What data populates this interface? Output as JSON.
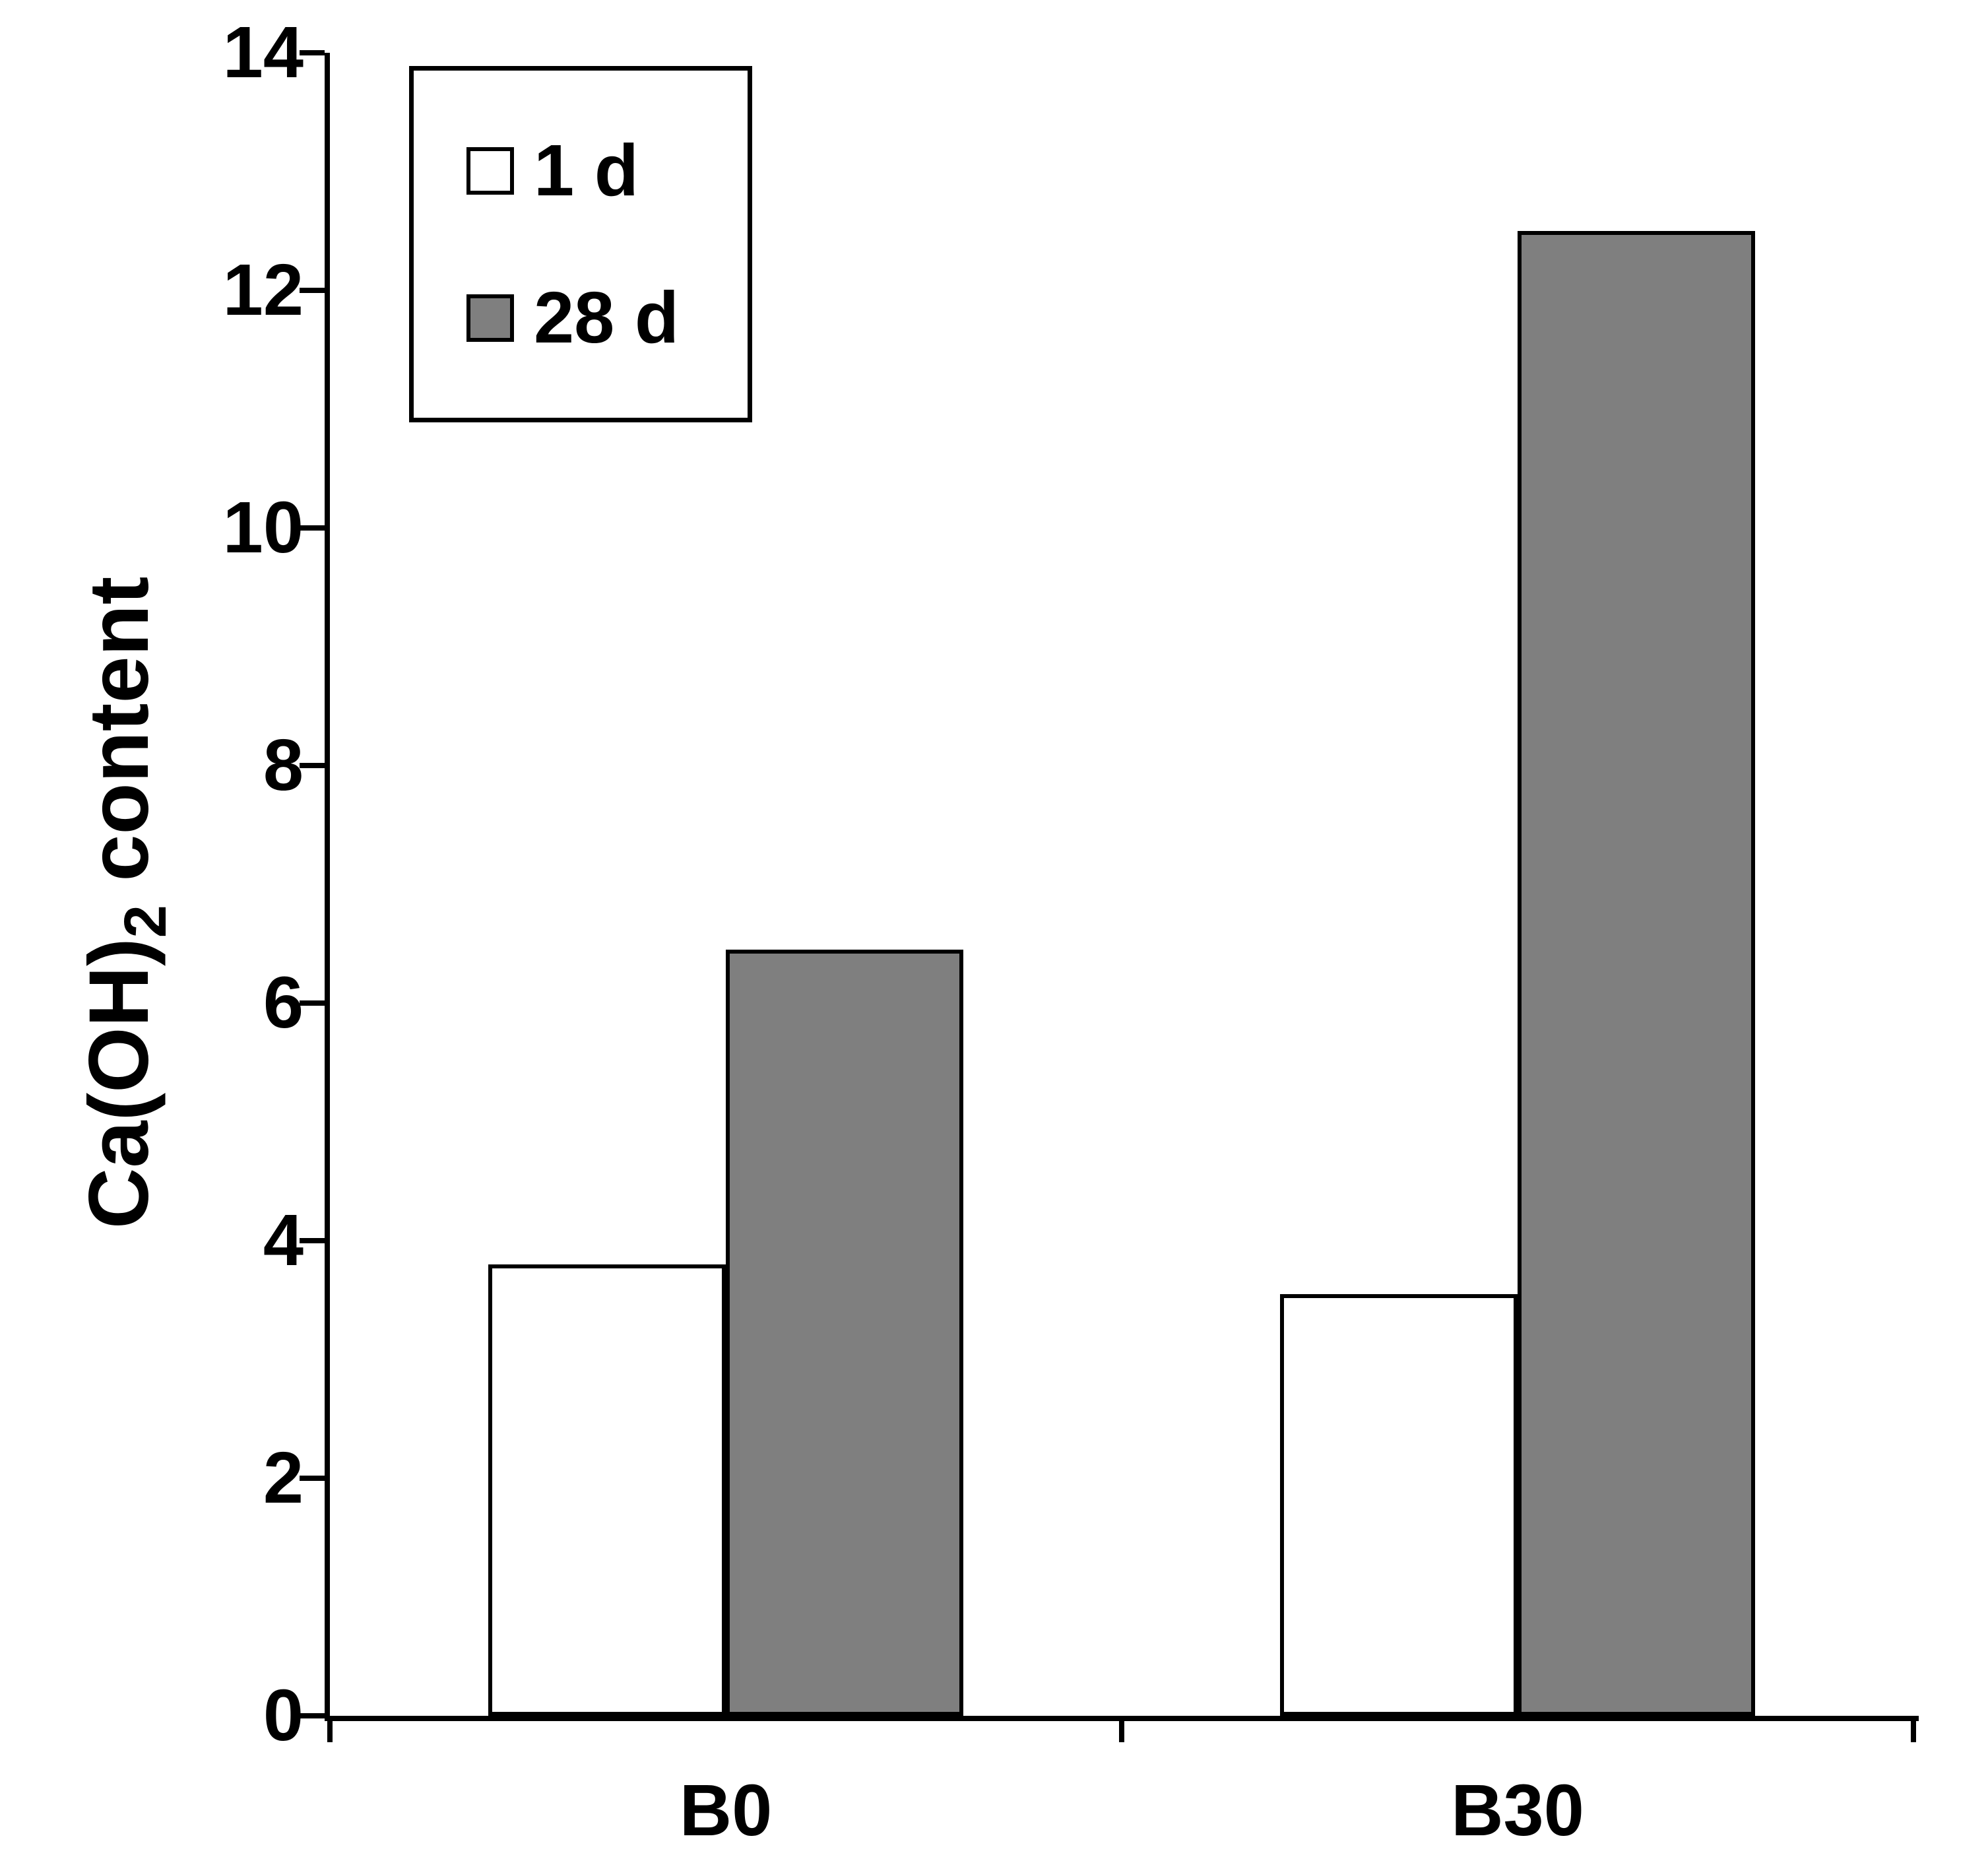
{
  "chart_data": {
    "type": "bar",
    "title": "",
    "categories": [
      "B0",
      "B30"
    ],
    "series": [
      {
        "name": "1 d",
        "fill": "#ffffff",
        "values": [
          3.8,
          3.55
        ]
      },
      {
        "name": "28 d",
        "fill": "#7f7f7f",
        "values": [
          6.45,
          12.5
        ]
      }
    ],
    "ylabel_parts": {
      "main": "Ca(OH)",
      "sub": "2",
      "rest": " content"
    },
    "xlabel": "",
    "ylim": [
      0,
      14
    ],
    "ytick_step": 2,
    "ytick_labels": [
      "0",
      "2",
      "4",
      "6",
      "8",
      "10",
      "12",
      "14"
    ],
    "grid": "off",
    "legend_position": "upper-left",
    "axis_color": "#000000",
    "background_color": "#ffffff"
  }
}
